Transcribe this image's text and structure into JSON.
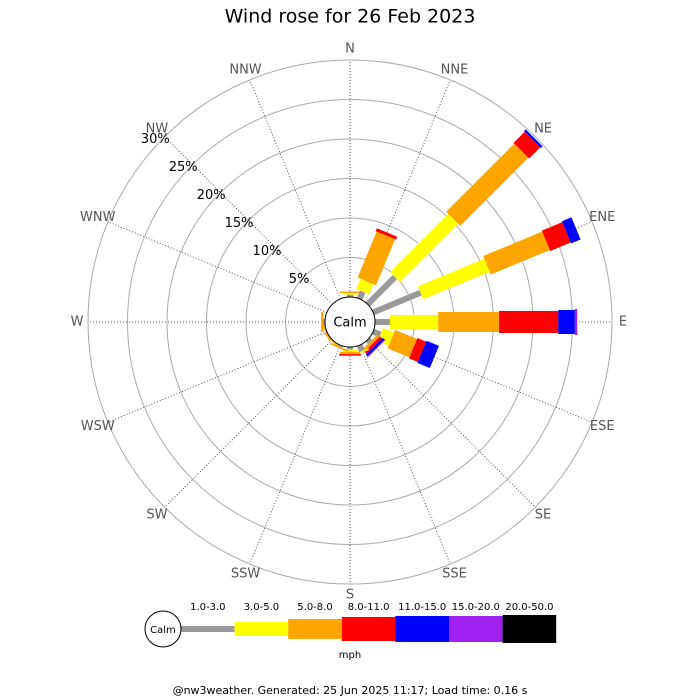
{
  "chart_data": {
    "type": "wind-rose",
    "title": "Wind rose for 26 Feb 2023",
    "categories": [
      "N",
      "NNE",
      "NE",
      "ENE",
      "E",
      "ESE",
      "SE",
      "SSE",
      "S",
      "SSW",
      "SW",
      "WSW",
      "W",
      "WNW",
      "NW",
      "NNW"
    ],
    "series": [
      {
        "name": "1.0-3.0",
        "color": "#999999",
        "values": [
          0.3,
          1.0,
          4.9,
          6.5,
          1.9,
          1.0,
          0.4,
          0.8,
          0.3,
          0.2,
          0,
          0,
          0.2,
          0,
          0,
          0
        ]
      },
      {
        "name": "3.0-5.0",
        "color": "#ffff00",
        "values": [
          0.2,
          1.4,
          10.4,
          9.1,
          6.1,
          1.5,
          0,
          0.2,
          0.3,
          0,
          0,
          0,
          0,
          0,
          0,
          0
        ]
      },
      {
        "name": "5.0-8.0",
        "color": "#ffa500",
        "values": [
          0.2,
          6.3,
          12.2,
          8.1,
          7.7,
          3.0,
          0.4,
          0,
          0.3,
          0.2,
          0.2,
          0.2,
          0.3,
          0,
          0,
          0
        ]
      },
      {
        "name": "8.0-11.0",
        "color": "#ff0000",
        "values": [
          0,
          0.4,
          2.0,
          2.8,
          7.5,
          1.2,
          0.4,
          0,
          0.2,
          0,
          0,
          0,
          0,
          0,
          0,
          0
        ]
      },
      {
        "name": "11.0-15.0",
        "color": "#0000ff",
        "values": [
          0,
          0,
          0.3,
          1.3,
          2.1,
          1.7,
          0.3,
          0,
          0,
          0,
          0,
          0,
          0,
          0,
          0,
          0
        ]
      },
      {
        "name": "15.0-20.0",
        "color": "#a020f0",
        "values": [
          0,
          0,
          0,
          0,
          0.3,
          0,
          0.1,
          0,
          0,
          0,
          0,
          0,
          0,
          0,
          0,
          0
        ]
      },
      {
        "name": "20.0-50.0",
        "color": "#000000",
        "values": [
          0,
          0,
          0,
          0,
          0,
          0,
          0,
          0,
          0,
          0,
          0,
          0,
          0,
          0,
          0,
          0
        ]
      }
    ],
    "rlim": [
      0,
      30
    ],
    "rticks": [
      {
        "value": 5,
        "label": "5%"
      },
      {
        "value": 10,
        "label": "10%"
      },
      {
        "value": 15,
        "label": "15%"
      },
      {
        "value": 20,
        "label": "20%"
      },
      {
        "value": 25,
        "label": "25%"
      },
      {
        "value": 30,
        "label": "30%"
      }
    ],
    "calm_label": "Calm",
    "legend_unit": "mph"
  },
  "footer": "@nw3weather. Generated: 25 Jun 2025 11:17; Load time: 0.16 s"
}
